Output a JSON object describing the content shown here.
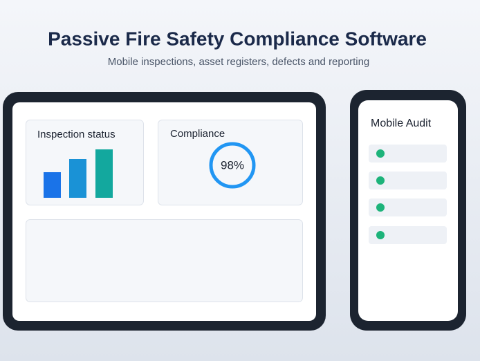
{
  "header": {
    "title": "Passive Fire Safety Compliance Software",
    "subtitle": "Mobile inspections, asset registers, defects and reporting"
  },
  "dashboard": {
    "inspection_card": {
      "title": "Inspection status"
    },
    "compliance_card": {
      "title": "Compliance",
      "value_label": "98%"
    }
  },
  "mobile": {
    "title": "Mobile Audit"
  }
}
